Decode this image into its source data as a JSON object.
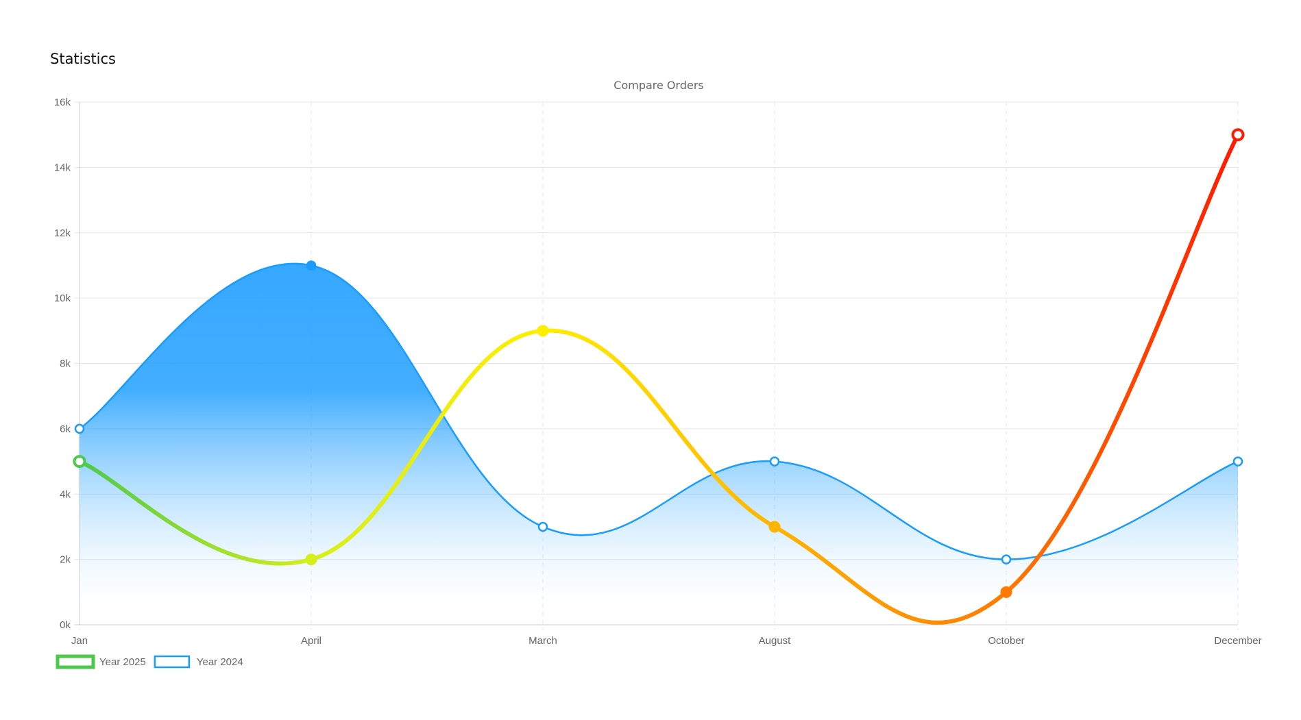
{
  "header": {
    "title": "Statistics"
  },
  "colors": {
    "series_2024": "#1a9cff",
    "grid": "#e6e6e6",
    "axis": "#cccccc",
    "text": "#666666",
    "gradient_2025": [
      "#4cc94a",
      "#d6ef1a",
      "#ffee00",
      "#ffb400",
      "#ff7a00",
      "#ff1a00"
    ]
  },
  "chart_data": {
    "type": "line",
    "title": "Compare Orders",
    "categories": [
      "Jan",
      "April",
      "March",
      "August",
      "October",
      "December"
    ],
    "ylim": [
      0,
      16000
    ],
    "yticks": [
      "0k",
      "2k",
      "4k",
      "6k",
      "8k",
      "10k",
      "12k",
      "14k",
      "16k"
    ],
    "grid": true,
    "legend_position": "bottom-left",
    "series": [
      {
        "name": "Year 2025",
        "values": [
          5000,
          2000,
          9000,
          3000,
          1000,
          15000
        ],
        "style": "thick gradient line, filled points"
      },
      {
        "name": "Year 2024",
        "values": [
          6000,
          11000,
          3000,
          5000,
          2000,
          5000
        ],
        "style": "thin line, area fill, hollow points"
      }
    ]
  }
}
